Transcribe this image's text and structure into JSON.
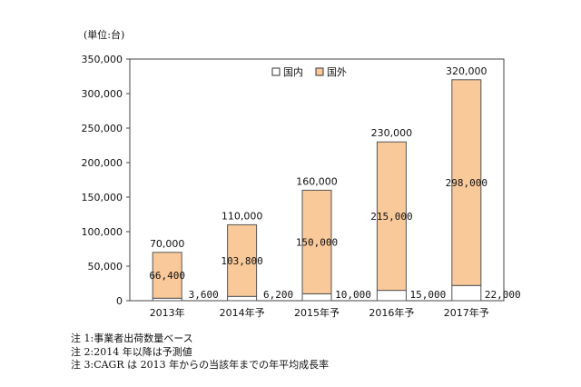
{
  "unit_label": "(単位:台)",
  "legend": {
    "domestic": "国内",
    "overseas": "国外"
  },
  "colors": {
    "domestic": "#ffffff",
    "overseas": "#f9c99a",
    "bar_stroke": "#555555",
    "plot_stroke": "#444444"
  },
  "chart_data": {
    "type": "bar",
    "stacked": true,
    "categories": [
      "2013年",
      "2014年予",
      "2015年予",
      "2016年予",
      "2017年予"
    ],
    "series": [
      {
        "name": "国内",
        "values": [
          3600,
          6200,
          10000,
          15000,
          22000
        ],
        "labels": [
          "3,600",
          "6,200",
          "10,000",
          "15,000",
          "22,000"
        ]
      },
      {
        "name": "国外",
        "values": [
          66400,
          103800,
          150000,
          215000,
          298000
        ],
        "labels": [
          "66,400",
          "103,800",
          "150,000",
          "215,000",
          "298,000"
        ]
      }
    ],
    "totals": [
      70000,
      110000,
      160000,
      230000,
      320000
    ],
    "total_labels": [
      "70,000",
      "110,000",
      "160,000",
      "230,000",
      "320,000"
    ],
    "ylim": [
      0,
      350000
    ],
    "yticks": [
      0,
      50000,
      100000,
      150000,
      200000,
      250000,
      300000,
      350000
    ],
    "ytick_labels": [
      "0",
      "50,000",
      "100,000",
      "150,000",
      "200,000",
      "250,000",
      "300,000",
      "350,000"
    ],
    "grid": false,
    "legend_position": "top-center"
  },
  "notes": [
    "注 1:事業者出荷数量ベース",
    "注 2:2014 年以降は予測値",
    "注 3:CAGR は 2013 年からの当該年までの年平均成長率"
  ]
}
